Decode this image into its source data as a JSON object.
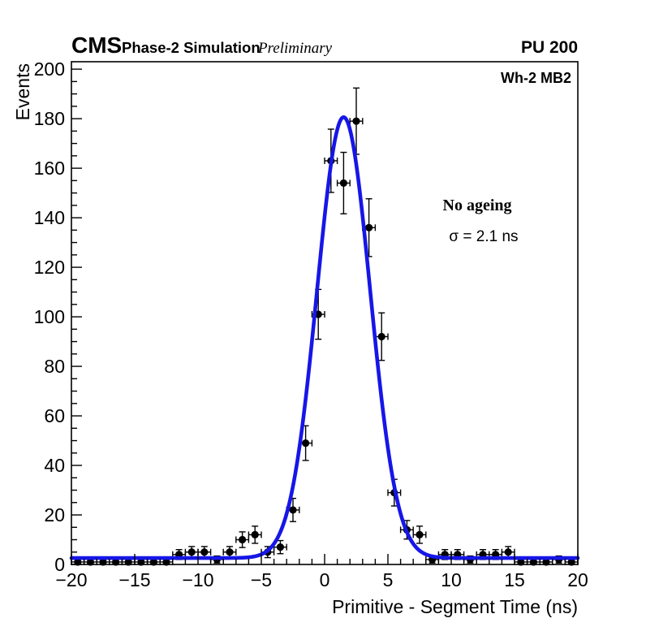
{
  "header": {
    "experiment": "CMS",
    "label": "Phase-2 Simulation",
    "sublabel": "Preliminary",
    "right_label": "PU 200"
  },
  "plot_annotations": {
    "region_label": "Wh-2 MB2",
    "ageing_label": "No ageing",
    "resolution_label": "σ = 2.1 ns"
  },
  "chart_data": {
    "type": "scatter",
    "description": "Histogram of timing residuals (1 ns bins) with Gaussian + constant fit",
    "title": "",
    "xlabel": "Primitive - Segment Time (ns)",
    "ylabel": "Events",
    "xlim": [
      -20,
      20
    ],
    "ylim": [
      0,
      203
    ],
    "xticks": [
      -20,
      -15,
      -10,
      -5,
      0,
      5,
      10,
      15,
      20
    ],
    "yticks": [
      0,
      20,
      40,
      60,
      80,
      100,
      120,
      140,
      160,
      180,
      200
    ],
    "x_minor_step": 1,
    "y_minor_step": 5,
    "grid": false,
    "legend": "none",
    "bin_width_ns": 1,
    "error_mode": "poisson_sqrt",
    "marker_color": "#000000",
    "points": {
      "x": [
        -19.5,
        -18.5,
        -17.5,
        -16.5,
        -15.5,
        -14.5,
        -13.5,
        -12.5,
        -11.5,
        -10.5,
        -9.5,
        -8.5,
        -7.5,
        -6.5,
        -5.5,
        -4.5,
        -3.5,
        -2.5,
        -1.5,
        -0.5,
        0.5,
        1.5,
        2.5,
        3.5,
        4.5,
        5.5,
        6.5,
        7.5,
        8.5,
        9.5,
        10.5,
        11.5,
        12.5,
        13.5,
        14.5,
        15.5,
        16.5,
        17.5,
        18.5,
        19.5
      ],
      "y": [
        1,
        1,
        1,
        1,
        1,
        1,
        1,
        1,
        4,
        5,
        5,
        2,
        5,
        10,
        12,
        5,
        7,
        22,
        49,
        101,
        163,
        154,
        179,
        136,
        92,
        29,
        14,
        12,
        2,
        4,
        4,
        2,
        4,
        4,
        5,
        1,
        1,
        1,
        2,
        1
      ]
    },
    "fit": {
      "type": "gaussian_plus_constant",
      "amplitude": 178,
      "mean": 1.5,
      "sigma": 2.1,
      "baseline": 2.6,
      "color": "#1616e8",
      "sigma_ns": 2.1
    }
  }
}
